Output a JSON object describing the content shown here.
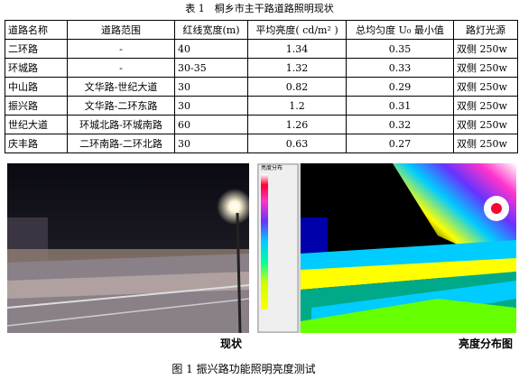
{
  "table": {
    "title": "表 1　桐乡市主干路道路照明现状",
    "header": [
      "道路名称",
      "道路范围",
      "红线宽度(m)",
      "平均亮度( cd/m² )",
      "总均匀度 U₀ 最小值",
      "路灯光源"
    ],
    "rows": [
      [
        "二环路",
        "-",
        "40",
        "1.34",
        "0.35",
        "双侧 250w"
      ],
      [
        "环城路",
        "-",
        "30-35",
        "1.32",
        "0.33",
        "双侧 250w"
      ],
      [
        "中山路",
        "文华路-世纪大道",
        "30",
        "0.82",
        "0.29",
        "双侧 250w"
      ],
      [
        "振兴路",
        "文华路-二环东路",
        "30",
        "1.2",
        "0.31",
        "双侧 250w"
      ],
      [
        "世纪大道",
        "环城北路-环城南路",
        "60",
        "1.26",
        "0.32",
        "双侧 250w"
      ],
      [
        "庆丰路",
        "二环南路-二环北路",
        "30",
        "0.63",
        "0.27",
        "双侧 250w"
      ]
    ]
  },
  "figure": {
    "left_label": "现状",
    "right_label": "亮度分布图",
    "legend_title": "亮度分布",
    "caption": "图 1 振兴路功能照明亮度测试"
  }
}
